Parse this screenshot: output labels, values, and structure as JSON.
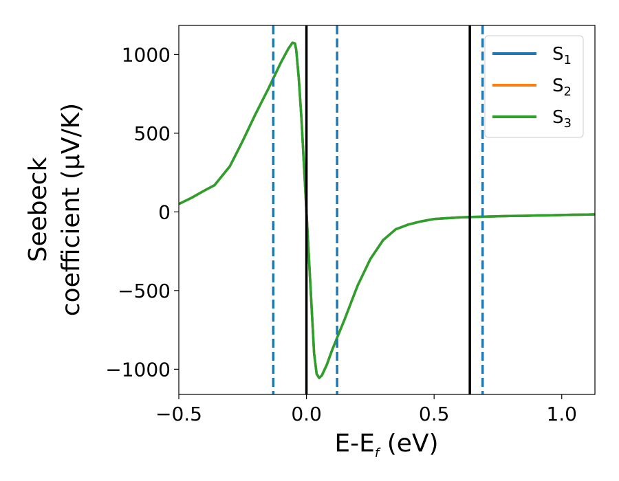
{
  "chart_data": {
    "type": "line",
    "xlabel": "E-E",
    "xlabel_sub": "f",
    "xlabel_unit": " (eV)",
    "ylabel_line1": "Seebeck",
    "ylabel_line2": "coefficient  (μV/K)",
    "xlim": [
      -0.5,
      1.13
    ],
    "ylim": [
      -1160,
      1185
    ],
    "x_ticks": [
      -0.5,
      0.0,
      0.5,
      1.0
    ],
    "x_tick_labels": [
      "−0.5",
      "0.0",
      "0.5",
      "1.0"
    ],
    "y_ticks": [
      -1000,
      -500,
      0,
      500,
      1000
    ],
    "y_tick_labels": [
      "−1000",
      "−500",
      "0",
      "500",
      "1000"
    ],
    "legend_position": "top-right",
    "series": [
      {
        "name": "S",
        "sub": "1",
        "color": "#1f77b4",
        "x": [
          -0.5,
          -0.45,
          -0.4,
          -0.36,
          -0.3,
          -0.25,
          -0.2,
          -0.15,
          -0.1,
          -0.07,
          -0.055,
          -0.045,
          -0.04,
          -0.03,
          -0.02,
          -0.01,
          0.0,
          0.01,
          0.02,
          0.03,
          0.04,
          0.05,
          0.06,
          0.08,
          0.1,
          0.12,
          0.15,
          0.2,
          0.25,
          0.3,
          0.35,
          0.4,
          0.45,
          0.5,
          0.55,
          0.6,
          0.65,
          0.7,
          0.75,
          0.8,
          0.85,
          0.9,
          0.95,
          1.0,
          1.05,
          1.1,
          1.13
        ],
        "y": [
          50,
          90,
          135,
          170,
          290,
          450,
          620,
          780,
          950,
          1040,
          1075,
          1070,
          1030,
          850,
          600,
          300,
          0,
          -300,
          -600,
          -900,
          -1030,
          -1055,
          -1040,
          -970,
          -880,
          -800,
          -680,
          -470,
          -300,
          -180,
          -110,
          -80,
          -60,
          -45,
          -40,
          -35,
          -32,
          -30,
          -28,
          -26,
          -25,
          -23,
          -22,
          -20,
          -18,
          -17,
          -16
        ]
      },
      {
        "name": "S",
        "sub": "2",
        "color": "#ff7f0e",
        "x": [
          -0.5,
          -0.45,
          -0.4,
          -0.36,
          -0.3,
          -0.25,
          -0.2,
          -0.15,
          -0.1,
          -0.07,
          -0.055,
          -0.045,
          -0.04,
          -0.03,
          -0.02,
          -0.01,
          0.0,
          0.01,
          0.02,
          0.03,
          0.04,
          0.05,
          0.06,
          0.08,
          0.1,
          0.12,
          0.15,
          0.2,
          0.25,
          0.3,
          0.35,
          0.4,
          0.45,
          0.5,
          0.55,
          0.6,
          0.65,
          0.7,
          0.75,
          0.8,
          0.85,
          0.9,
          0.95,
          1.0,
          1.05,
          1.1,
          1.13
        ],
        "y": [
          50,
          90,
          135,
          170,
          290,
          450,
          620,
          780,
          950,
          1040,
          1075,
          1070,
          1030,
          850,
          600,
          300,
          0,
          -300,
          -600,
          -900,
          -1030,
          -1055,
          -1040,
          -970,
          -880,
          -800,
          -680,
          -470,
          -300,
          -180,
          -110,
          -80,
          -60,
          -45,
          -40,
          -35,
          -32,
          -30,
          -28,
          -26,
          -25,
          -23,
          -22,
          -20,
          -18,
          -17,
          -16
        ]
      },
      {
        "name": "S",
        "sub": "3",
        "color": "#2ca02c",
        "x": [
          -0.5,
          -0.45,
          -0.4,
          -0.36,
          -0.3,
          -0.25,
          -0.2,
          -0.15,
          -0.1,
          -0.07,
          -0.055,
          -0.045,
          -0.04,
          -0.03,
          -0.02,
          -0.01,
          0.0,
          0.01,
          0.02,
          0.03,
          0.04,
          0.05,
          0.06,
          0.08,
          0.1,
          0.12,
          0.15,
          0.2,
          0.25,
          0.3,
          0.35,
          0.4,
          0.45,
          0.5,
          0.55,
          0.6,
          0.65,
          0.7,
          0.75,
          0.8,
          0.85,
          0.9,
          0.95,
          1.0,
          1.05,
          1.1,
          1.13
        ],
        "y": [
          50,
          90,
          135,
          170,
          290,
          450,
          620,
          780,
          950,
          1040,
          1075,
          1070,
          1030,
          850,
          600,
          300,
          0,
          -300,
          -600,
          -900,
          -1030,
          -1055,
          -1040,
          -970,
          -880,
          -800,
          -680,
          -470,
          -300,
          -180,
          -110,
          -80,
          -60,
          -45,
          -40,
          -35,
          -32,
          -30,
          -28,
          -26,
          -25,
          -23,
          -22,
          -20,
          -18,
          -17,
          -16
        ]
      }
    ],
    "vlines_solid": {
      "color": "#000000",
      "x": [
        0.0,
        0.64
      ]
    },
    "vlines_dashed": {
      "color": "#1f77b4",
      "x": [
        -0.13,
        0.12,
        0.69
      ]
    }
  }
}
